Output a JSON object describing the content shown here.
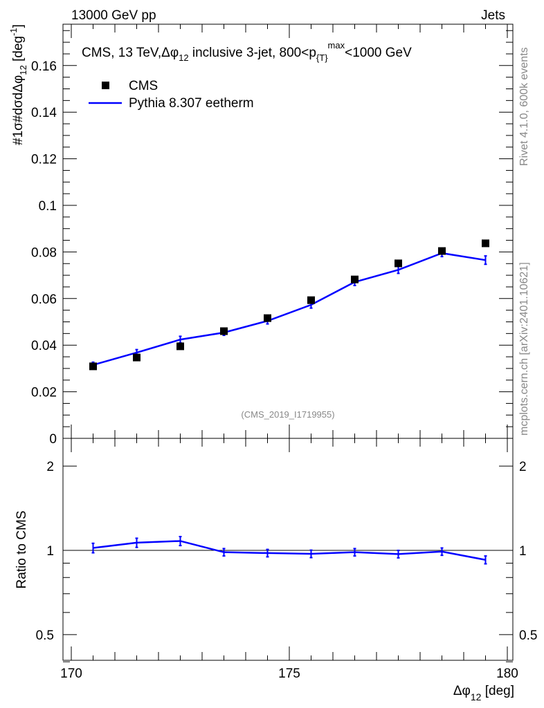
{
  "header": {
    "left": "13000 GeV pp",
    "right": "Jets"
  },
  "side_labels": {
    "rivet": "Rivet 4.1.0,  600k events",
    "mcplots": "mcplots.cern.ch [arXiv:2401.10621]"
  },
  "colors": {
    "data": "#000000",
    "mc": "#0000ff"
  },
  "chart_data": [
    {
      "type": "scatter",
      "title": "CMS, 13 TeV,Δφ12 inclusive 3-jet, 800<pT max<1000 GeV",
      "title_parts": {
        "a": "CMS, 13 TeV,Δφ",
        "b": "12",
        "c": " inclusive 3-jet, 800<p",
        "d": "{T}",
        "e": "max",
        "f": "<1000 GeV"
      },
      "ylabel": "#1/σ#dσ/dΔφ12 [deg-1]",
      "ylabel_parts": {
        "a": "#",
        "b": "1",
        "c": "σ",
        "d": "#",
        "e": "dσ",
        "f": "dΔφ",
        "g": "12",
        "h": " [deg",
        "i": "-1",
        "j": "]"
      },
      "watermark": "(CMS_2019_I1719955)",
      "xlim": [
        169.8,
        180.2
      ],
      "ylim": [
        0,
        0.178
      ],
      "yticks": [
        "0",
        "0.02",
        "0.04",
        "0.06",
        "0.08",
        "0.1",
        "0.12",
        "0.14",
        "0.16"
      ],
      "ytick_values": [
        0,
        0.02,
        0.04,
        0.06,
        0.08,
        0.1,
        0.12,
        0.14,
        0.16
      ],
      "legend": [
        {
          "name": "CMS",
          "style": "marker"
        },
        {
          "name": "Pythia 8.307 eetherm",
          "style": "line"
        }
      ],
      "legend_position": "top-left",
      "x": [
        170.5,
        171.5,
        172.5,
        173.5,
        174.5,
        175.5,
        176.5,
        177.5,
        178.5,
        179.5
      ],
      "series": [
        {
          "name": "CMS",
          "values": [
            0.0309,
            0.0347,
            0.0395,
            0.046,
            0.0516,
            0.0593,
            0.0682,
            0.0751,
            0.0804,
            0.0837
          ]
        },
        {
          "name": "Pythia 8.307 eetherm",
          "values": [
            0.0315,
            0.0368,
            0.0424,
            0.0454,
            0.0504,
            0.0573,
            0.0671,
            0.0723,
            0.0795,
            0.0765
          ],
          "errors": [
            0.0012,
            0.0013,
            0.0014,
            0.0012,
            0.0013,
            0.0014,
            0.0015,
            0.0015,
            0.0015,
            0.0018
          ]
        }
      ]
    },
    {
      "type": "line",
      "ylabel": "Ratio to CMS",
      "xlabel": "Δφ12 [deg]",
      "xlabel_parts": {
        "a": "Δφ",
        "b": "12",
        "c": " [deg]"
      },
      "yscale": "log",
      "ylim": [
        0.36,
        2.45
      ],
      "yticks": [
        "0.5",
        "1",
        "2"
      ],
      "ytick_values": [
        0.5,
        1,
        2
      ],
      "xticks": [
        "170",
        "175",
        "180"
      ],
      "xtick_values": [
        170,
        175,
        180
      ],
      "x": [
        170.5,
        171.5,
        172.5,
        173.5,
        174.5,
        175.5,
        176.5,
        177.5,
        178.5,
        179.5
      ],
      "series": [
        {
          "name": "Pythia 8.307 eetherm / CMS",
          "values": [
            1.02,
            1.065,
            1.08,
            0.985,
            0.978,
            0.972,
            0.985,
            0.97,
            0.99,
            0.925
          ],
          "errors": [
            0.04,
            0.04,
            0.04,
            0.03,
            0.03,
            0.03,
            0.03,
            0.03,
            0.03,
            0.03
          ]
        }
      ]
    }
  ]
}
